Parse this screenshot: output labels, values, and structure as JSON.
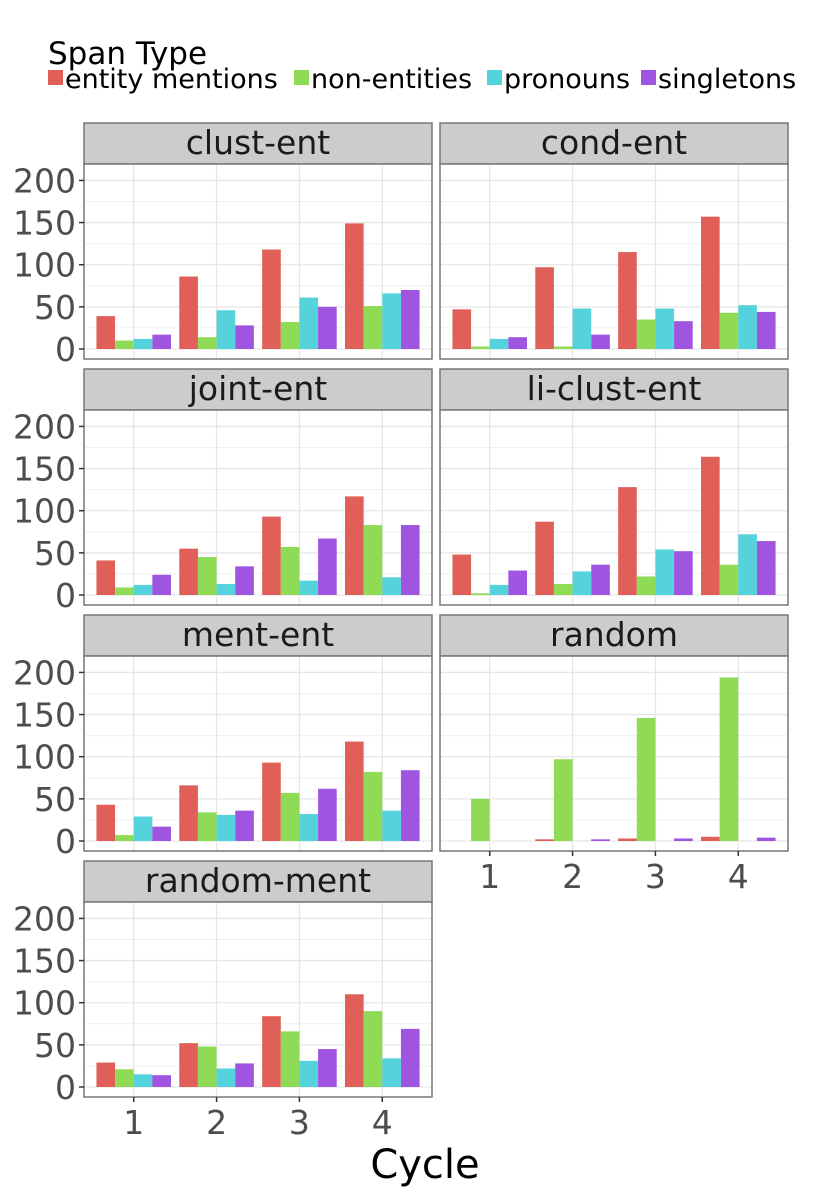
{
  "chart_data": {
    "type": "bar",
    "legend": {
      "title": "Span Type",
      "placement": "top-left",
      "entries": [
        {
          "name": "entity mentions",
          "color": "#e05f59"
        },
        {
          "name": "non-entities",
          "color": "#8fdb56"
        },
        {
          "name": "pronouns",
          "color": "#55d3dc"
        },
        {
          "name": "singletons",
          "color": "#9f55e0"
        }
      ]
    },
    "xlabel": "Cycle",
    "ylabel": "",
    "categories": [
      "1",
      "2",
      "3",
      "4"
    ],
    "ylim": [
      0,
      210
    ],
    "yticks": [
      0,
      50,
      100,
      150,
      200
    ],
    "grid": true,
    "panels": [
      {
        "title": "clust-ent",
        "series": [
          {
            "name": "entity mentions",
            "values": [
              39,
              86,
              118,
              149
            ]
          },
          {
            "name": "non-entities",
            "values": [
              10,
              14,
              32,
              51
            ]
          },
          {
            "name": "pronouns",
            "values": [
              12,
              46,
              61,
              66
            ]
          },
          {
            "name": "singletons",
            "values": [
              17,
              28,
              50,
              70
            ]
          }
        ]
      },
      {
        "title": "cond-ent",
        "series": [
          {
            "name": "entity mentions",
            "values": [
              47,
              97,
              115,
              157
            ]
          },
          {
            "name": "non-entities",
            "values": [
              3,
              3,
              35,
              43
            ]
          },
          {
            "name": "pronouns",
            "values": [
              12,
              48,
              48,
              52
            ]
          },
          {
            "name": "singletons",
            "values": [
              14,
              17,
              33,
              44
            ]
          }
        ]
      },
      {
        "title": "joint-ent",
        "series": [
          {
            "name": "entity mentions",
            "values": [
              41,
              55,
              93,
              117
            ]
          },
          {
            "name": "non-entities",
            "values": [
              9,
              45,
              57,
              83
            ]
          },
          {
            "name": "pronouns",
            "values": [
              12,
              13,
              17,
              21
            ]
          },
          {
            "name": "singletons",
            "values": [
              24,
              34,
              67,
              83
            ]
          }
        ]
      },
      {
        "title": "li-clust-ent",
        "series": [
          {
            "name": "entity mentions",
            "values": [
              48,
              87,
              128,
              164
            ]
          },
          {
            "name": "non-entities",
            "values": [
              2,
              13,
              22,
              36
            ]
          },
          {
            "name": "pronouns",
            "values": [
              12,
              28,
              54,
              72
            ]
          },
          {
            "name": "singletons",
            "values": [
              29,
              36,
              52,
              64
            ]
          }
        ]
      },
      {
        "title": "ment-ent",
        "series": [
          {
            "name": "entity mentions",
            "values": [
              43,
              66,
              93,
              118
            ]
          },
          {
            "name": "non-entities",
            "values": [
              7,
              34,
              57,
              82
            ]
          },
          {
            "name": "pronouns",
            "values": [
              29,
              31,
              32,
              36
            ]
          },
          {
            "name": "singletons",
            "values": [
              17,
              36,
              62,
              84
            ]
          }
        ]
      },
      {
        "title": "random",
        "series": [
          {
            "name": "entity mentions",
            "values": [
              0,
              2,
              3,
              5
            ]
          },
          {
            "name": "non-entities",
            "values": [
              50,
              97,
              146,
              194
            ]
          },
          {
            "name": "pronouns",
            "values": [
              0,
              0,
              0,
              0
            ]
          },
          {
            "name": "singletons",
            "values": [
              0,
              2,
              3,
              4
            ]
          }
        ]
      },
      {
        "title": "random-ment",
        "series": [
          {
            "name": "entity mentions",
            "values": [
              29,
              52,
              84,
              110
            ]
          },
          {
            "name": "non-entities",
            "values": [
              21,
              48,
              66,
              90
            ]
          },
          {
            "name": "pronouns",
            "values": [
              15,
              22,
              31,
              34
            ]
          },
          {
            "name": "singletons",
            "values": [
              14,
              28,
              45,
              69
            ]
          }
        ]
      }
    ]
  }
}
